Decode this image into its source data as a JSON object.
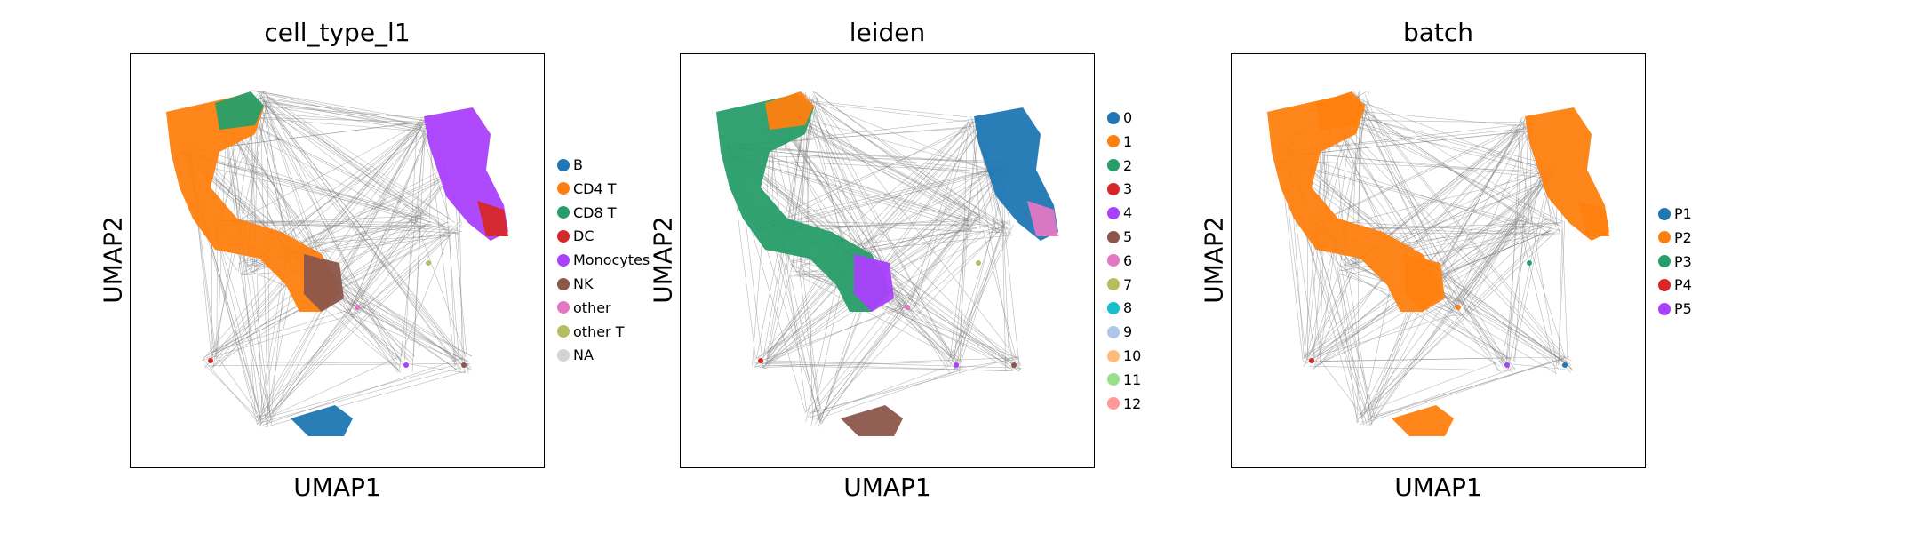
{
  "chart_data": [
    {
      "type": "scatter",
      "title": "cell_type_l1",
      "xlabel": "UMAP1",
      "ylabel": "UMAP2",
      "grid": false,
      "legend_position": "right",
      "legend": [
        {
          "label": "B",
          "color": "#1f77b4"
        },
        {
          "label": "CD4 T",
          "color": "#ff7f0e"
        },
        {
          "label": "CD8 T",
          "color": "#279e68"
        },
        {
          "label": "DC",
          "color": "#d62728"
        },
        {
          "label": "Monocytes",
          "color": "#aa40fc"
        },
        {
          "label": "NK",
          "color": "#8c564b"
        },
        {
          "label": "other",
          "color": "#e377c2"
        },
        {
          "label": "other T",
          "color": "#b5bd61"
        },
        {
          "label": "NA",
          "color": "#d3d3d3"
        }
      ]
    },
    {
      "type": "scatter",
      "title": "leiden",
      "xlabel": "UMAP1",
      "ylabel": "UMAP2",
      "grid": false,
      "legend_position": "right",
      "legend": [
        {
          "label": "0",
          "color": "#1f77b4"
        },
        {
          "label": "1",
          "color": "#ff7f0e"
        },
        {
          "label": "2",
          "color": "#279e68"
        },
        {
          "label": "3",
          "color": "#d62728"
        },
        {
          "label": "4",
          "color": "#aa40fc"
        },
        {
          "label": "5",
          "color": "#8c564b"
        },
        {
          "label": "6",
          "color": "#e377c2"
        },
        {
          "label": "7",
          "color": "#b5bd61"
        },
        {
          "label": "8",
          "color": "#17becf"
        },
        {
          "label": "9",
          "color": "#aec7e8"
        },
        {
          "label": "10",
          "color": "#ffbb78"
        },
        {
          "label": "11",
          "color": "#98df8a"
        },
        {
          "label": "12",
          "color": "#ff9896"
        }
      ]
    },
    {
      "type": "scatter",
      "title": "batch",
      "xlabel": "UMAP1",
      "ylabel": "UMAP2",
      "grid": false,
      "legend_position": "right",
      "legend": [
        {
          "label": "P1",
          "color": "#1f77b4"
        },
        {
          "label": "P2",
          "color": "#ff7f0e"
        },
        {
          "label": "P3",
          "color": "#279e68"
        },
        {
          "label": "P4",
          "color": "#d62728"
        },
        {
          "label": "P5",
          "color": "#aa40fc"
        }
      ]
    }
  ]
}
